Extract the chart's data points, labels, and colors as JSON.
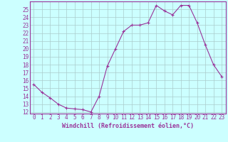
{
  "x": [
    0,
    1,
    2,
    3,
    4,
    5,
    6,
    7,
    8,
    9,
    10,
    11,
    12,
    13,
    14,
    15,
    16,
    17,
    18,
    19,
    20,
    21,
    22,
    23
  ],
  "y": [
    15.5,
    14.5,
    13.8,
    13.0,
    12.5,
    12.4,
    12.3,
    12.0,
    14.0,
    17.8,
    20.0,
    22.2,
    23.0,
    23.0,
    23.3,
    25.5,
    24.8,
    24.3,
    25.5,
    25.5,
    23.3,
    20.5,
    18.0,
    16.5
  ],
  "line_color": "#993399",
  "marker": "+",
  "markersize": 3.5,
  "linewidth": 0.8,
  "xlim": [
    -0.5,
    23.5
  ],
  "ylim": [
    11.8,
    26.0
  ],
  "yticks": [
    12,
    13,
    14,
    15,
    16,
    17,
    18,
    19,
    20,
    21,
    22,
    23,
    24,
    25
  ],
  "xticks": [
    0,
    1,
    2,
    3,
    4,
    5,
    6,
    7,
    8,
    9,
    10,
    11,
    12,
    13,
    14,
    15,
    16,
    17,
    18,
    19,
    20,
    21,
    22,
    23
  ],
  "xlabel": "Windchill (Refroidissement éolien,°C)",
  "bg_color": "#ccffff",
  "grid_color": "#aacccc",
  "tick_color": "#993399",
  "label_color": "#993399",
  "xlabel_fontsize": 6.0,
  "tick_fontsize": 5.5
}
